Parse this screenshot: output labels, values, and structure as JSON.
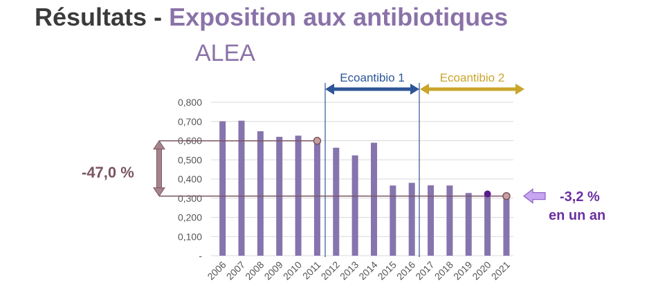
{
  "header": {
    "title_part1": "Résultats",
    "separator": " - ",
    "title_part2": "Exposition aux antibiotiques",
    "subtitle": "ALEA"
  },
  "colors": {
    "bar": "#8574ad",
    "title_dark": "#3b3b3b",
    "title_accent": "#8a72a8",
    "reference_line": "#7a5560",
    "ecoantibio1": "#2d5597",
    "ecoantibio2": "#c9a52a",
    "decrease_arrow": "#c9a6f0",
    "point_2020": "#5a1a8c"
  },
  "annotations": {
    "left_change": "-47,0 %",
    "right_change": "-3,2 %",
    "right_change_sub": "en un an"
  },
  "periods": [
    {
      "label": "Ecoantibio 1",
      "from": "2012",
      "to": "2016"
    },
    {
      "label": "Ecoantibio 2",
      "from": "2017",
      "to": "2021"
    }
  ],
  "chart_data": {
    "type": "bar",
    "title": "",
    "xlabel": "",
    "ylabel": "",
    "categories": [
      "2006",
      "2007",
      "2008",
      "2009",
      "2010",
      "2011",
      "2012",
      "2013",
      "2014",
      "2015",
      "2016",
      "2017",
      "2018",
      "2019",
      "2020",
      "2021"
    ],
    "values": [
      0.701,
      0.704,
      0.649,
      0.62,
      0.626,
      0.599,
      0.563,
      0.523,
      0.589,
      0.366,
      0.38,
      0.367,
      0.366,
      0.327,
      0.322,
      0.311
    ],
    "ylim": [
      0,
      0.8
    ],
    "yticks": [
      {
        "value": 0.0,
        "label": "-"
      },
      {
        "value": 0.1,
        "label": "0,100"
      },
      {
        "value": 0.2,
        "label": "0,200"
      },
      {
        "value": 0.3,
        "label": "0,300"
      },
      {
        "value": 0.4,
        "label": "0,400"
      },
      {
        "value": 0.5,
        "label": "0,500"
      },
      {
        "value": 0.6,
        "label": "0,600"
      },
      {
        "value": 0.7,
        "label": "0,700"
      },
      {
        "value": 0.8,
        "label": "0,800"
      }
    ],
    "grid": true,
    "reference_lines": [
      {
        "value": 0.599,
        "marker_at": "2011"
      },
      {
        "value": 0.311,
        "marker_at": "2021"
      }
    ],
    "highlight_points": [
      {
        "category": "2020",
        "value": 0.322
      }
    ]
  }
}
